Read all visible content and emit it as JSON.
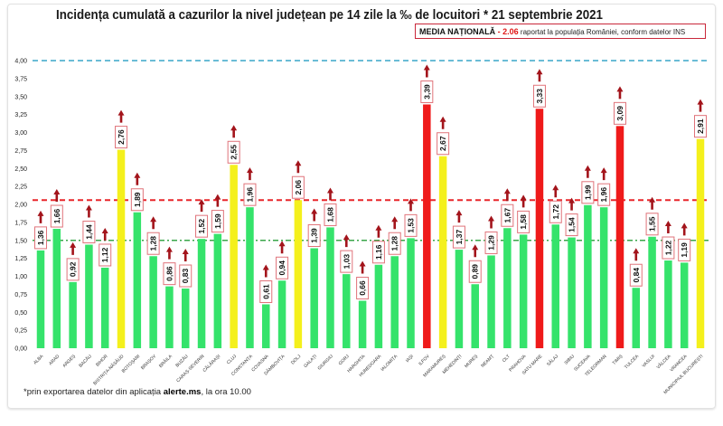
{
  "chart_data": {
    "type": "bar",
    "title": "Incidența cumulată a cazurilor la nivel județean pe 14 zile la ‰ de locuitori * 21 septembrie 2021",
    "categories": [
      "ALBA",
      "ARAD",
      "ARGEȘ",
      "BACĂU",
      "BIHOR",
      "BISTRIȚA-NĂSĂUD",
      "BOTOȘANI",
      "BRAȘOV",
      "BRĂILA",
      "BUZĂU",
      "CARAȘ-SEVERIN",
      "CĂLĂRAȘI",
      "CLUJ",
      "CONSTANȚA",
      "COVASNA",
      "DÂMBOVIȚA",
      "DOLJ",
      "GALAȚI",
      "GIURGIU",
      "GORJ",
      "HARGHITA",
      "HUNEDOARA",
      "IALOMIȚA",
      "IAȘI",
      "ILFOV",
      "MARAMUREȘ",
      "MEHEDINȚI",
      "MUREȘ",
      "NEAMȚ",
      "OLT",
      "PRAHOVA",
      "SATU MARE",
      "SĂLAJ",
      "SIBIU",
      "SUCEAVA",
      "TELEORMAN",
      "TIMIȘ",
      "TULCEA",
      "VASLUI",
      "VÂLCEA",
      "VRANCEA",
      "MUNICIPIUL BUCUREȘTI"
    ],
    "values": [
      1.36,
      1.66,
      0.92,
      1.44,
      1.12,
      2.76,
      1.89,
      1.28,
      0.86,
      0.83,
      1.52,
      1.59,
      2.55,
      1.96,
      0.61,
      0.94,
      2.06,
      1.39,
      1.68,
      1.03,
      0.66,
      1.16,
      1.28,
      1.53,
      3.39,
      2.67,
      1.37,
      0.89,
      1.29,
      1.67,
      1.58,
      3.33,
      1.72,
      1.54,
      1.99,
      1.96,
      3.09,
      0.84,
      1.55,
      1.22,
      1.19,
      2.91
    ],
    "value_labels": [
      "1,36",
      "1,66",
      "0,92",
      "1,44",
      "1,12",
      "2,76",
      "1,89",
      "1,28",
      "0,86",
      "0,83",
      "1,52",
      "1,59",
      "2,55",
      "1,96",
      "0,61",
      "0,94",
      "2,06",
      "1,39",
      "1,68",
      "1,03",
      "0,66",
      "1,16",
      "1,28",
      "1,53",
      "3,39",
      "2,67",
      "1,37",
      "0,89",
      "1,29",
      "1,67",
      "1,58",
      "3,33",
      "1,72",
      "1,54",
      "1,99",
      "1,96",
      "3,09",
      "0,84",
      "1,55",
      "1,22",
      "1,19",
      "2,91"
    ],
    "ylim": [
      0,
      4
    ],
    "yticks": [
      "0,00",
      "0,25",
      "0,50",
      "0,75",
      "1,00",
      "1,25",
      "1,50",
      "1,75",
      "2,00",
      "2,25",
      "2,50",
      "2,75",
      "3,00",
      "3,25",
      "3,50",
      "3,75",
      "4,00"
    ],
    "reference_lines": [
      {
        "value": 4.0,
        "color": "#3aa6c9",
        "style": "dashed"
      },
      {
        "value": 2.06,
        "color": "#e8262a",
        "style": "dashed"
      },
      {
        "value": 1.5,
        "color": "#3aa64a",
        "style": "dash-dot"
      }
    ],
    "color_rules": {
      "below_2": "#35e36b",
      "from_2_to_3": "#f4f01c",
      "above_3": "#ef1a1a"
    },
    "trend_arrow_color": "#a3141b",
    "label_border_color": "#e0737a",
    "grid": false,
    "legend": "none"
  },
  "media": {
    "label": "MEDIA NAȚIONALĂ",
    "separator": " - ",
    "value": "2.06",
    "text": " raportat la populația României, conform datelor INS"
  },
  "footnote": {
    "prefix": "*prin exportarea datelor din aplicația ",
    "bold": "alerte.ms",
    "suffix": ", la ora 10.00"
  }
}
